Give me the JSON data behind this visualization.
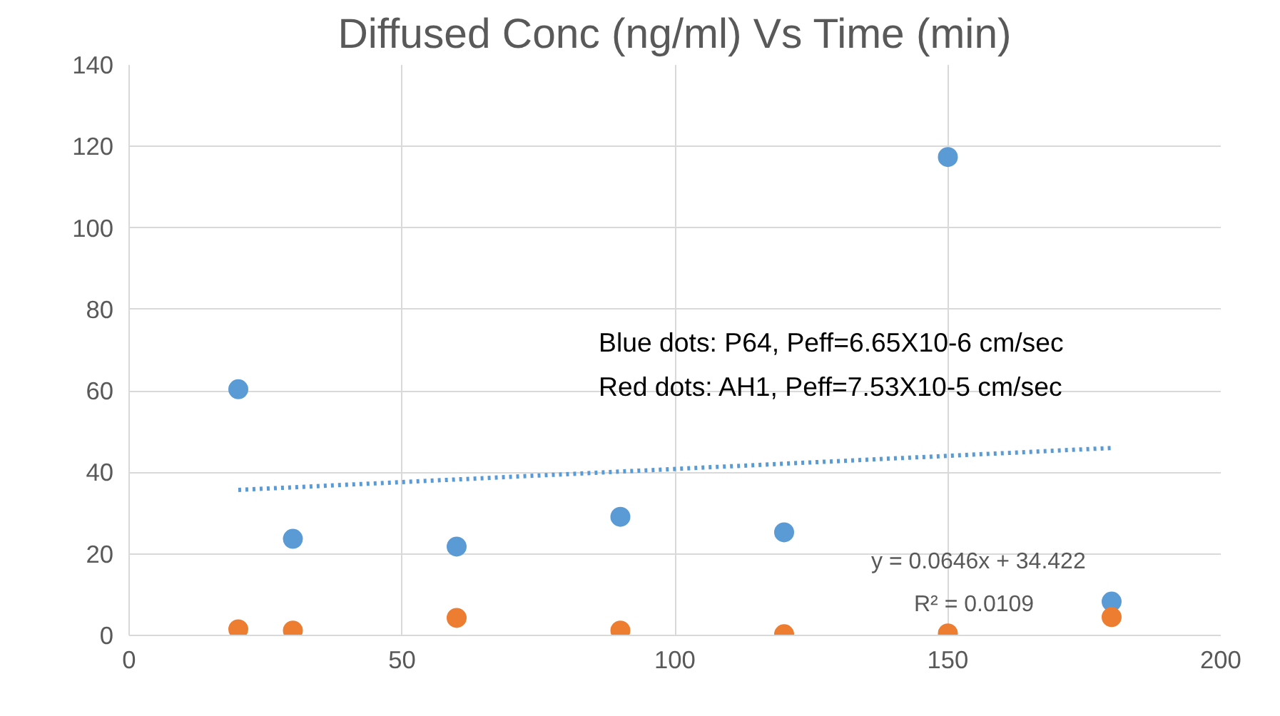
{
  "chart_data": {
    "type": "scatter",
    "title": "Diffused Conc (ng/ml) Vs Time (min)",
    "x": [
      20,
      30,
      60,
      90,
      120,
      150,
      180
    ],
    "series": [
      {
        "color": "#5b9bd5",
        "values": [
          60.4,
          23.7,
          21.8,
          29.1,
          25.3,
          117.4,
          8.3
        ]
      },
      {
        "color": "#ed7d31",
        "values": [
          1.5,
          1.2,
          4.3,
          1.2,
          0.3,
          0.5,
          4.5
        ]
      },
      {
        "type": "line",
        "color": "#5b9bd5",
        "x": [
          20,
          180
        ],
        "values": [
          35.7,
          46.0
        ],
        "line_style": "dotted",
        "marker": "none"
      }
    ],
    "xlim": [
      0,
      200
    ],
    "xticks": [
      0,
      50,
      100,
      150,
      200
    ],
    "ylim": [
      0,
      140
    ],
    "yticks": [
      0,
      20,
      40,
      60,
      80,
      100,
      120,
      140
    ],
    "grid": true,
    "marker": "circle",
    "annotations": [
      "Blue dots: P64, Peff=6.65X10-6 cm/sec",
      "Red dots: AH1, Peff=7.53X10-5 cm/sec",
      "y = 0.0646x + 34.422",
      "R² = 0.0109"
    ]
  }
}
